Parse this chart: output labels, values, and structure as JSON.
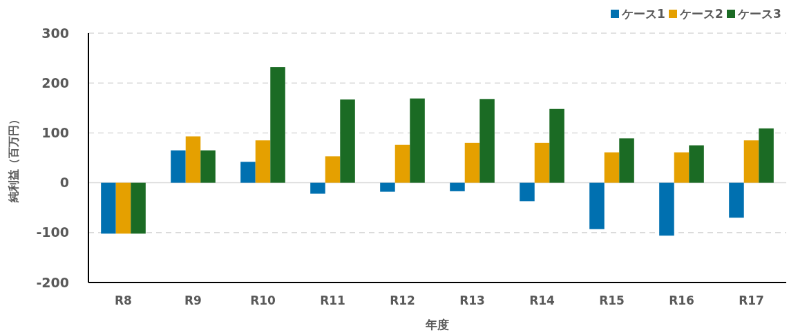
{
  "chart_data": {
    "type": "bar",
    "xlabel": "年度",
    "ylabel": "純利益（百万円）",
    "categories": [
      "R8",
      "R9",
      "R10",
      "R11",
      "R12",
      "R13",
      "R14",
      "R15",
      "R16",
      "R17"
    ],
    "series": [
      {
        "name": "ケース1",
        "color": "#0070b0",
        "values": [
          -102,
          65,
          42,
          -22,
          -18,
          -17,
          -37,
          -93,
          -106,
          -70
        ]
      },
      {
        "name": "ケース2",
        "color": "#e5a000",
        "values": [
          -102,
          93,
          85,
          53,
          76,
          80,
          80,
          61,
          61,
          85
        ]
      },
      {
        "name": "ケース3",
        "color": "#1b6b24",
        "values": [
          -102,
          65,
          232,
          167,
          169,
          168,
          148,
          89,
          75,
          109
        ]
      }
    ],
    "ylim": [
      -200,
      300
    ],
    "yticks": [
      -200,
      -100,
      0,
      100,
      200,
      300
    ],
    "grid": "y",
    "legend": "top right"
  }
}
